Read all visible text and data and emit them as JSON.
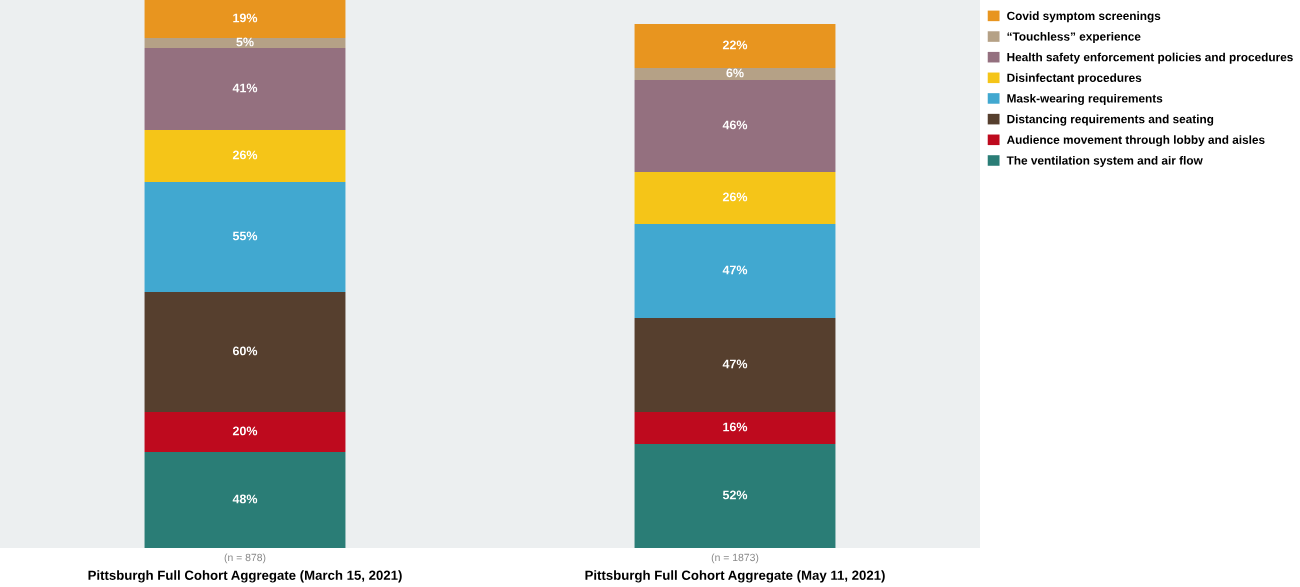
{
  "chart_data": {
    "type": "bar",
    "stacked": true,
    "legend": "top right",
    "grid": false,
    "categories": [
      "Pittsburgh Full Cohort Aggregate (March 15, 2021)",
      "Pittsburgh Full Cohort Aggregate (May 11, 2021)"
    ],
    "series": [
      {
        "name": "The ventilation system and air flow",
        "color": "#2a7d76",
        "values": [
          48,
          52
        ],
        "value_labels": [
          "48%",
          "52%"
        ]
      },
      {
        "name": "Audience movement through lobby and aisles",
        "color": "#be0a1e",
        "values": [
          20,
          16
        ],
        "value_labels": [
          "20%",
          "16%"
        ]
      },
      {
        "name": "Distancing requirements and seating",
        "color": "#563f2e",
        "values": [
          60,
          47
        ],
        "value_labels": [
          "60%",
          "47%"
        ]
      },
      {
        "name": "Mask-wearing requirements",
        "color": "#41a8d0",
        "values": [
          55,
          47
        ],
        "value_labels": [
          "55%",
          "47%"
        ]
      },
      {
        "name": "Disinfectant procedures",
        "color": "#f5c518",
        "values": [
          26,
          26
        ],
        "value_labels": [
          "26%",
          "26%"
        ]
      },
      {
        "name": "Health safety enforcement policies and procedures",
        "color": "#94707f",
        "values": [
          41,
          46
        ],
        "value_labels": [
          "41%",
          "46%"
        ]
      },
      {
        "name": "“Touchless” experience",
        "color": "#b5a186",
        "values": [
          5,
          6
        ],
        "value_labels": [
          "5%",
          "6%"
        ]
      },
      {
        "name": "Covid symptom screenings",
        "color": "#e8951f",
        "values": [
          19,
          22
        ],
        "value_labels": [
          "19%",
          "22%"
        ]
      }
    ],
    "annotations": [
      "(n = 878)",
      "(n = 1873)"
    ]
  }
}
